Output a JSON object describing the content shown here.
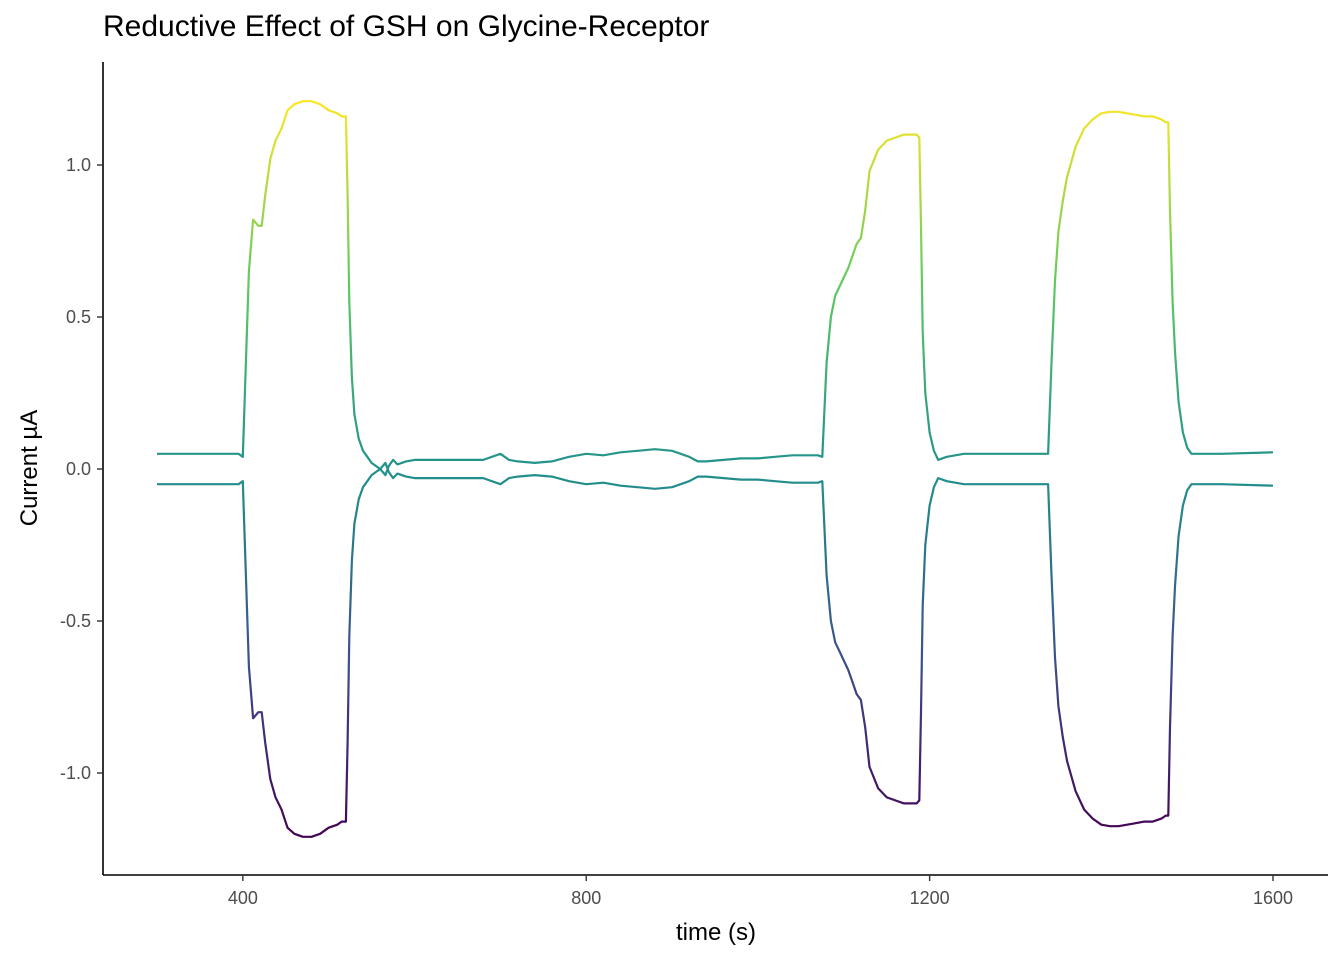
{
  "chart_data": {
    "type": "line",
    "title": "Reductive Effect of GSH on Glycine-Receptor",
    "xlabel": "time (s)",
    "ylabel": "Current µA",
    "xlim": [
      300,
      1600
    ],
    "ylim": [
      -1.33,
      1.33
    ],
    "x_ticks": [
      400,
      800,
      1200,
      1600
    ],
    "x_tick_labels": [
      "400",
      "800",
      "1200",
      "1600"
    ],
    "y_ticks": [
      1.0,
      0.5,
      0.0,
      -0.5,
      -1.0
    ],
    "y_tick_labels": [
      "1.0",
      "0.5",
      "0.0",
      "-0.5",
      "-1.0"
    ],
    "grid": false,
    "legend": "none",
    "color_scale": [
      "#440154",
      "#3b528b",
      "#21918c",
      "#5ec962",
      "#fde725"
    ],
    "series": [
      {
        "x": [
          300,
          390,
          395,
          400,
          403,
          407,
          412,
          418,
          422,
          426,
          432,
          438,
          445,
          452,
          460,
          470,
          480,
          490,
          500,
          510,
          515,
          520,
          522,
          524,
          527,
          530,
          535,
          540,
          545,
          550,
          555,
          560,
          566,
          570,
          575,
          580,
          585,
          590,
          600,
          620,
          650,
          680,
          700,
          710,
          720,
          740,
          760,
          780,
          800,
          820,
          840,
          860,
          880,
          900,
          920,
          930,
          940,
          960,
          980,
          1000,
          1020,
          1040,
          1060,
          1070,
          1075,
          1080,
          1085,
          1090,
          1095,
          1100,
          1105,
          1110,
          1115,
          1120,
          1125,
          1130,
          1140,
          1150,
          1160,
          1170,
          1180,
          1185,
          1188,
          1190,
          1192,
          1195,
          1200,
          1205,
          1210,
          1220,
          1240,
          1270,
          1300,
          1330,
          1338,
          1342,
          1346,
          1350,
          1355,
          1360,
          1370,
          1380,
          1390,
          1400,
          1410,
          1420,
          1430,
          1440,
          1450,
          1460,
          1470,
          1475,
          1478,
          1480,
          1483,
          1486,
          1490,
          1495,
          1500,
          1505,
          1510,
          1520,
          1540,
          1600
        ],
        "y": [
          0.05,
          0.05,
          0.05,
          0.04,
          0.3,
          0.65,
          0.82,
          0.8,
          0.8,
          0.9,
          1.02,
          1.08,
          1.12,
          1.18,
          1.2,
          1.21,
          1.21,
          1.2,
          1.18,
          1.17,
          1.16,
          1.16,
          0.9,
          0.55,
          0.3,
          0.18,
          0.1,
          0.06,
          0.04,
          0.02,
          0.01,
          0.0,
          -0.02,
          0.01,
          0.03,
          0.015,
          0.02,
          0.025,
          0.03,
          0.03,
          0.03,
          0.03,
          0.05,
          0.03,
          0.025,
          0.02,
          0.025,
          0.04,
          0.05,
          0.045,
          0.055,
          0.06,
          0.065,
          0.06,
          0.04,
          0.025,
          0.025,
          0.03,
          0.035,
          0.035,
          0.04,
          0.045,
          0.045,
          0.045,
          0.04,
          0.35,
          0.5,
          0.57,
          0.6,
          0.63,
          0.66,
          0.7,
          0.74,
          0.76,
          0.85,
          0.98,
          1.05,
          1.08,
          1.09,
          1.1,
          1.1,
          1.1,
          1.09,
          0.8,
          0.45,
          0.25,
          0.12,
          0.06,
          0.03,
          0.04,
          0.05,
          0.05,
          0.05,
          0.05,
          0.05,
          0.35,
          0.62,
          0.78,
          0.88,
          0.96,
          1.06,
          1.12,
          1.15,
          1.17,
          1.175,
          1.175,
          1.17,
          1.165,
          1.16,
          1.16,
          1.15,
          1.14,
          1.14,
          0.85,
          0.55,
          0.38,
          0.22,
          0.12,
          0.07,
          0.05,
          0.05,
          0.05,
          0.05,
          0.055
        ]
      }
    ]
  }
}
